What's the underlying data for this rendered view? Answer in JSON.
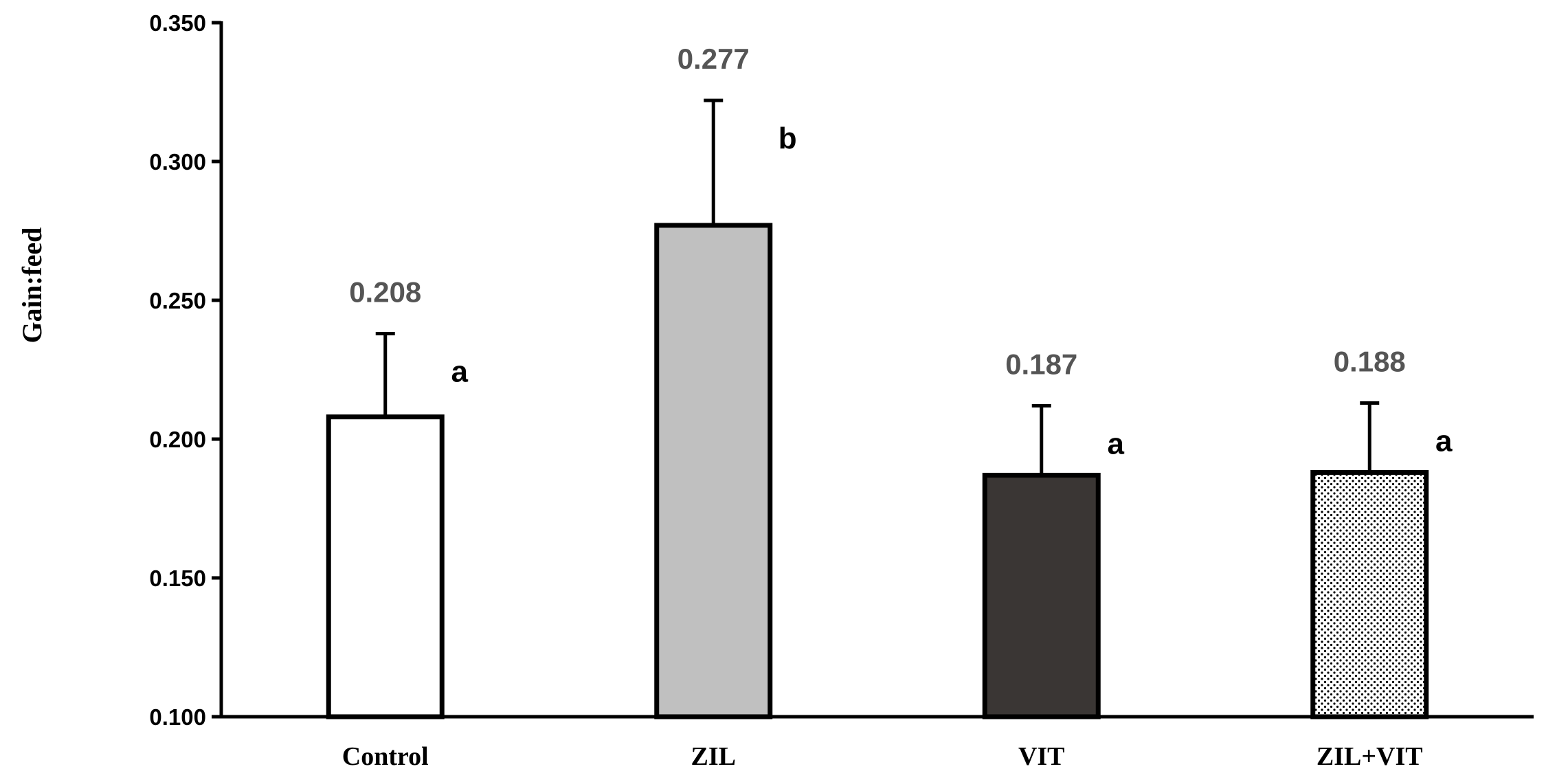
{
  "chart_data": {
    "type": "bar",
    "title": "",
    "xlabel": "",
    "ylabel": "Gain:feed",
    "ylim": [
      0.1,
      0.35
    ],
    "y_ticks": [
      0.1,
      0.15,
      0.2,
      0.25,
      0.3,
      0.35
    ],
    "y_tick_labels": [
      "0.100",
      "0.150",
      "0.200",
      "0.250",
      "0.300",
      "0.350"
    ],
    "categories": [
      "Control",
      "ZIL",
      "VIT",
      "ZIL+VIT"
    ],
    "values": [
      0.208,
      0.277,
      0.187,
      0.188
    ],
    "value_labels": [
      "0.208",
      "0.277",
      "0.187",
      "0.188"
    ],
    "error_upper": [
      0.03,
      0.045,
      0.025,
      0.025
    ],
    "significance_letters": [
      "a",
      "b",
      "a",
      "a"
    ],
    "bar_fills": [
      "white",
      "light-gray",
      "dark-gray",
      "dotted"
    ],
    "grid": false,
    "legend": "none"
  },
  "colors": {
    "axis": "#000000",
    "bar_outline": "#000000",
    "control_fill": "#ffffff",
    "zil_fill": "#c0c0c0",
    "vit_fill": "#3a3634",
    "dotted_fill": "#000000",
    "value_label": "#555555"
  }
}
